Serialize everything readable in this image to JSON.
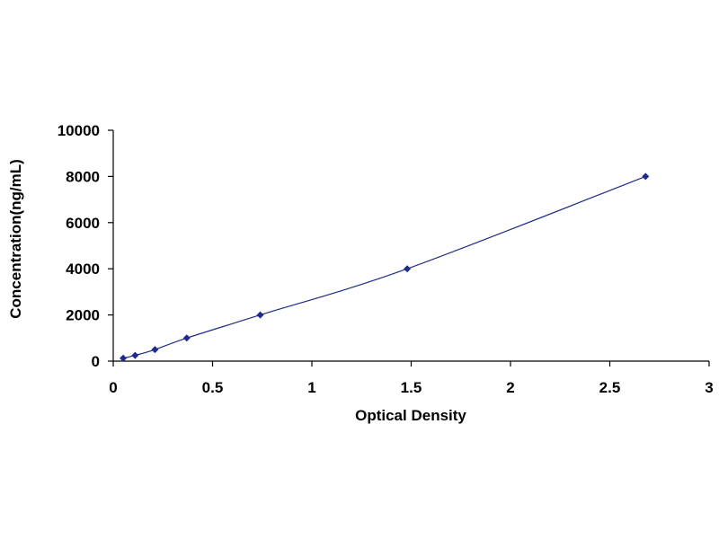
{
  "chart_data": {
    "type": "scatter",
    "title": "",
    "xlabel": "Optical Density",
    "ylabel": "Concentration(ng/mL)",
    "xlim": [
      0,
      3
    ],
    "ylim": [
      0,
      10000
    ],
    "x_ticks": [
      0,
      0.5,
      1,
      1.5,
      2,
      2.5,
      3
    ],
    "x_tick_labels": [
      "0",
      "0.5",
      "1",
      "1.5",
      "2",
      "2.5",
      "3"
    ],
    "y_ticks": [
      0,
      2000,
      4000,
      6000,
      8000,
      10000
    ],
    "y_tick_labels": [
      "0",
      "2000",
      "4000",
      "6000",
      "8000",
      "10000"
    ],
    "grid": false,
    "legend": "none",
    "fit_line": true,
    "series": [
      {
        "x": [
          0.05,
          0.11,
          0.21,
          0.37,
          0.74,
          1.48,
          2.68
        ],
        "y": [
          125,
          250,
          500,
          1000,
          2000,
          4000,
          8000
        ]
      }
    ],
    "colors": {
      "line": "#1f2a8c",
      "marker": "#1f2a8c",
      "axis": "#000000"
    }
  }
}
